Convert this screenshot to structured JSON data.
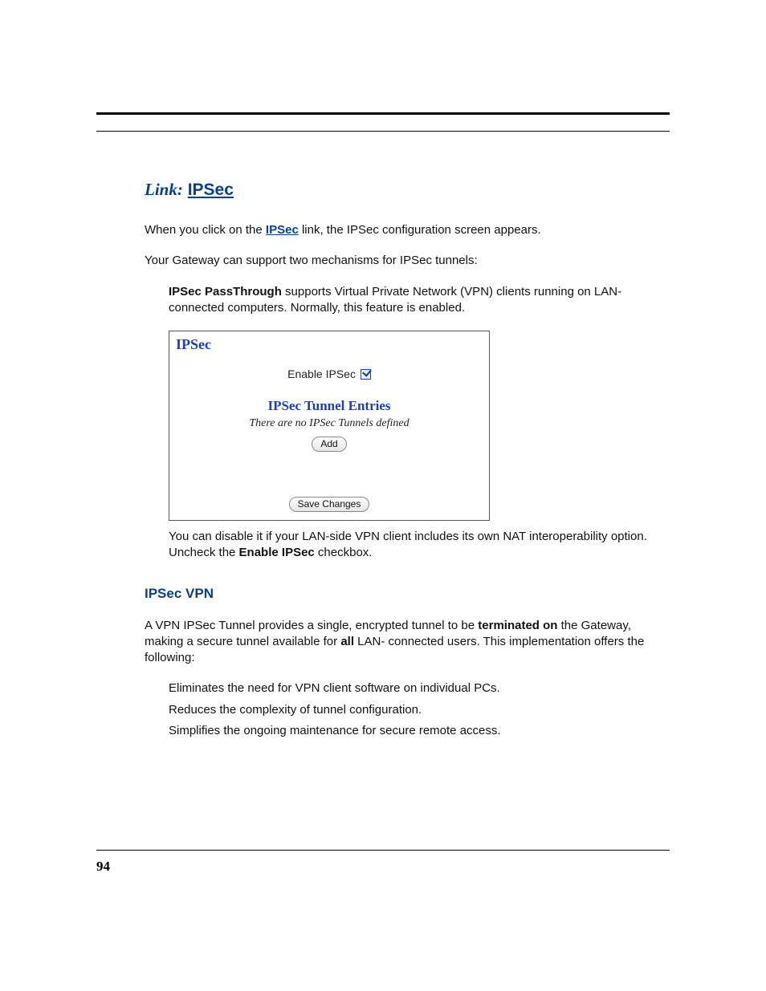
{
  "page_number": "94",
  "heading": {
    "prefix": "Link:",
    "title": "IPSec"
  },
  "intro": {
    "pre": "When you click on the ",
    "link_text": "IPSec",
    "post": " link, the IPSec configuration screen appears."
  },
  "para2": "Your Gateway can support two mechanisms for IPSec tunnels:",
  "passthrough": {
    "label": "IPSec PassThrough",
    "text": " supports Virtual Private Network (VPN) clients running on LAN-connected computers. Normally, this feature is enabled."
  },
  "screenshot": {
    "title": "IPSec",
    "enable_label": "Enable IPSec",
    "checked": true,
    "subhead": "IPSec Tunnel Entries",
    "empty_text": "There are no IPSec Tunnels defined",
    "add_button": "Add",
    "save_button": "Save Changes",
    "colors": {
      "brand_blue": "#1e3fbd",
      "border": "#555555",
      "button_bg_top": "#fdfdfd",
      "button_bg_bottom": "#e6e6e6",
      "button_border": "#888888"
    }
  },
  "disable_note": {
    "pre": "You can disable it if your LAN-side VPN client includes its own NAT interoperability option. Uncheck the ",
    "bold": "Enable IPSec",
    "post": " checkbox."
  },
  "vpn_heading": "IPSec VPN",
  "vpn_intro": {
    "p1": "A VPN IPSec Tunnel provides a single, encrypted tunnel to be ",
    "b1": "terminated on",
    "p2": " the Gateway, making a secure tunnel available for ",
    "b2": "all",
    "p3": " LAN- connected users. This implementation offers the following:"
  },
  "vpn_bullets": [
    "Eliminates the need for VPN client software on individual PCs.",
    "Reduces the complexity of tunnel configuration.",
    "Simplifies the ongoing maintenance for secure remote access."
  ],
  "colors": {
    "link_blue": "#0a3f8f",
    "text": "#111111",
    "rule": "#000000"
  }
}
